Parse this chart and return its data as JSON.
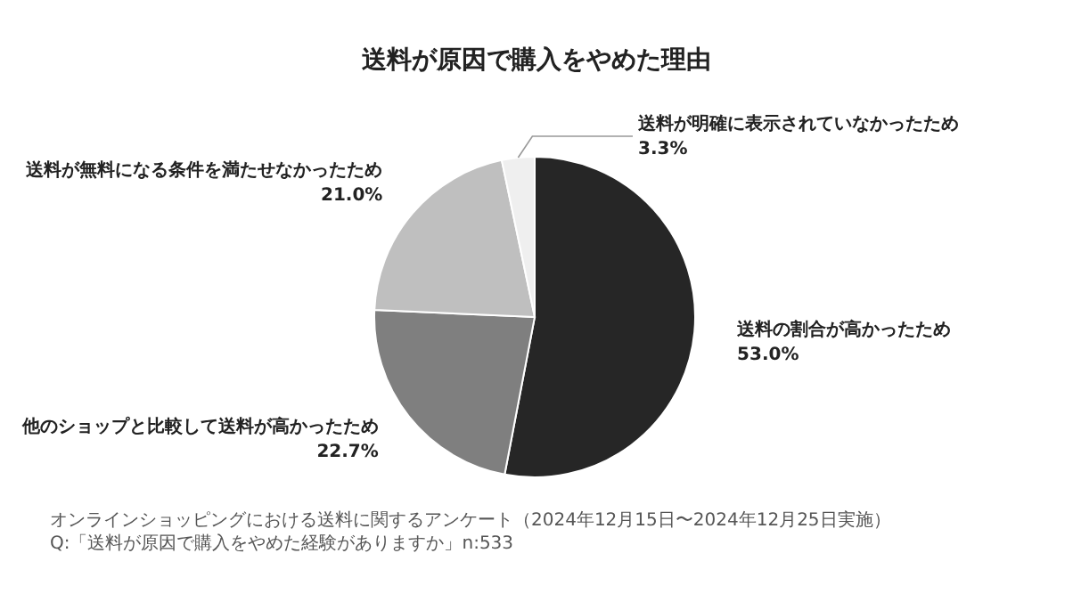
{
  "chart_data": {
    "type": "pie",
    "title": "送料が原因で購入をやめた理由",
    "categories": [
      "送料の割合が高かったため",
      "他のショップと比較して送料が高かったため",
      "送料が無料になる条件を満たせなかったため",
      "送料が明確に表示されていなかったため"
    ],
    "values": [
      53.0,
      22.7,
      21.0,
      3.3
    ],
    "value_labels": [
      "53.0%",
      "22.7%",
      "21.0%",
      "3.3%"
    ],
    "colors": [
      "#262626",
      "#7f7f7f",
      "#bfbfbf",
      "#efefef"
    ],
    "annotations": [
      "オンラインショッピングにおける送料に関するアンケート（2024年12月15日〜2024年12月25日実施）",
      "Q:「送料が原因で購入をやめた経験がありますか」n:533"
    ]
  }
}
